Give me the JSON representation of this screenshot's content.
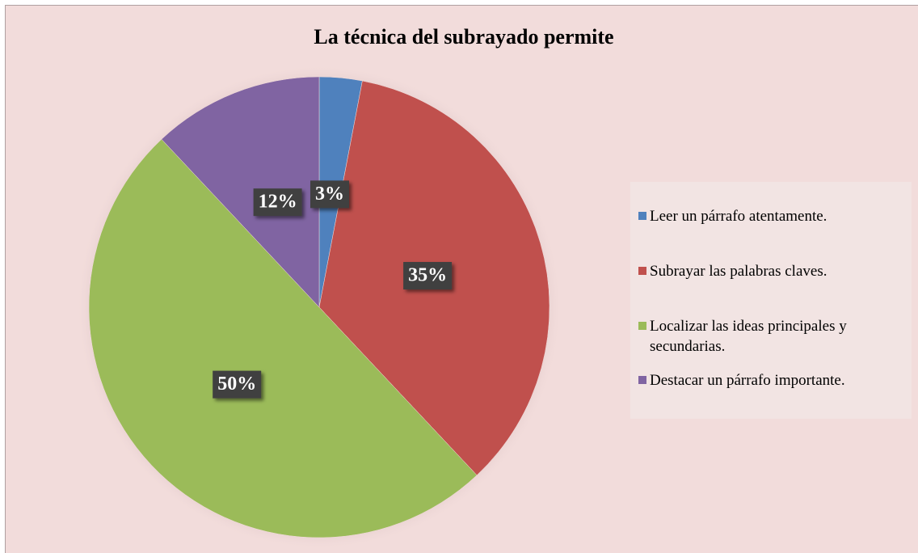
{
  "chart_data": {
    "type": "pie",
    "title": "La técnica del subrayado permite",
    "categories": [
      "Leer un párrafo atentamente.",
      "Subrayar las palabras claves.",
      "Localizar las ideas principales y secundarias.",
      "Destacar un párrafo importante."
    ],
    "values": [
      3,
      35,
      50,
      12
    ],
    "value_labels": [
      "3%",
      "35%",
      "50%",
      "12%"
    ],
    "colors": [
      "#4f81bd",
      "#c0504d",
      "#9bbb59",
      "#8064a2"
    ],
    "legend": "right"
  }
}
